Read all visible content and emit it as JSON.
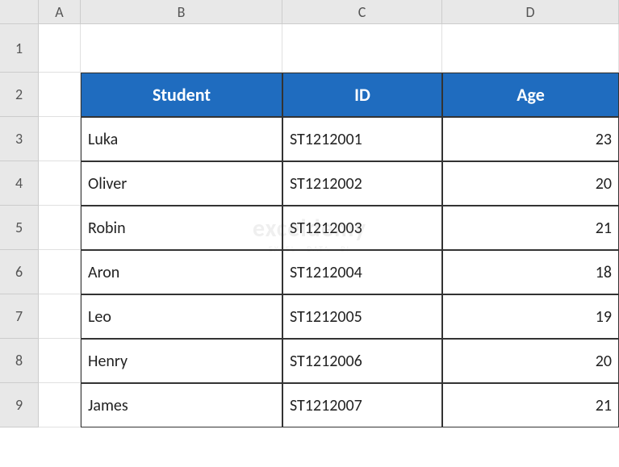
{
  "grid": {
    "column_letters": [
      "A",
      "B",
      "C",
      "D"
    ],
    "row_numbers": [
      "1",
      "2",
      "3",
      "4",
      "5",
      "6",
      "7",
      "8",
      "9"
    ],
    "header_bg_color": "#1f6cbf",
    "header_text_color": "#ffffff",
    "cell_border_color": "#333333",
    "grid_border_color": "#e0e0e0",
    "row_col_header_bg": "#e8e8e8",
    "font_family": "Calibri",
    "header_font_size": 22,
    "data_font_size": 20
  },
  "table": {
    "headers": {
      "student": "Student",
      "id": "ID",
      "age": "Age"
    },
    "rows": [
      {
        "student": "Luka",
        "id": "ST1212001",
        "age": "23"
      },
      {
        "student": "Oliver",
        "id": "ST1212002",
        "age": "20"
      },
      {
        "student": "Robin",
        "id": "ST1212003",
        "age": "21"
      },
      {
        "student": "Aron",
        "id": "ST1212004",
        "age": "18"
      },
      {
        "student": "Leo",
        "id": "ST1212005",
        "age": "19"
      },
      {
        "student": "Henry",
        "id": "ST1212006",
        "age": "20"
      },
      {
        "student": "James",
        "id": "ST1212007",
        "age": "21"
      }
    ]
  },
  "watermark": {
    "main": "exceldemy",
    "sub": "EXCEL · DATA · BI"
  }
}
